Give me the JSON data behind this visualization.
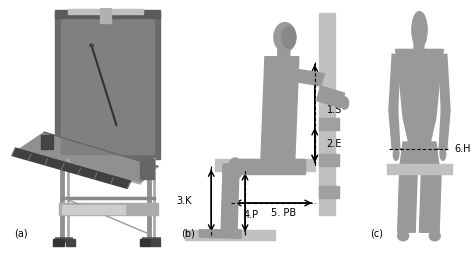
{
  "fig_width": 4.74,
  "fig_height": 2.65,
  "dpi": 100,
  "background_color": "#ffffff",
  "label_a": "(a)",
  "label_b": "(b)",
  "label_c": "(c)",
  "body_color": "#999999",
  "body_color_dark": "#777777",
  "equipment_color": "#888888",
  "equipment_light": "#bbbbbb",
  "equipment_dark": "#555555",
  "measurements_b": [
    "1.S",
    "2.E",
    "3.K",
    "4.P",
    "5. PB"
  ],
  "measurements_c": [
    "6.H"
  ]
}
